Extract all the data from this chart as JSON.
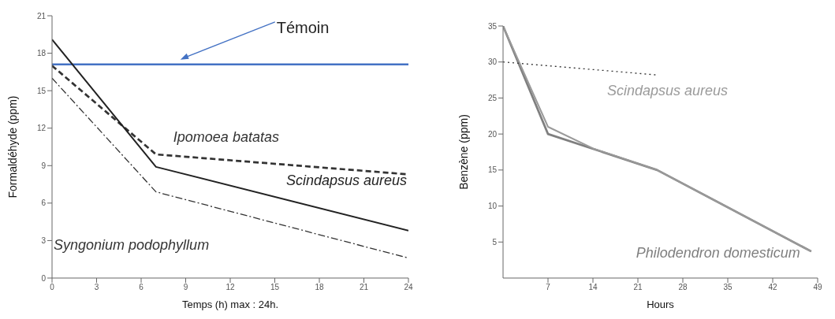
{
  "chart_data": [
    {
      "type": "line",
      "xlabel": "Temps (h) max : 24h.",
      "ylabel": "Formaldéhyde (ppm)",
      "xlim": [
        0,
        24
      ],
      "xticks": [
        0,
        3,
        6,
        9,
        12,
        15,
        18,
        21,
        24
      ],
      "ylim": [
        0,
        21
      ],
      "yticks": [
        0,
        3,
        6,
        9,
        12,
        15,
        18,
        21
      ],
      "grid": false,
      "legend": false,
      "marker": "none",
      "series": [
        {
          "name": "Ipomoea batatas",
          "color": "#333333",
          "line_style": "dashed",
          "x": [
            0,
            7,
            24
          ],
          "values": [
            17.0,
            9.9,
            8.3
          ]
        },
        {
          "name": "Scindapsus aureus",
          "color": "#222222",
          "line_style": "solid",
          "x": [
            0,
            7,
            24
          ],
          "values": [
            19.1,
            8.9,
            3.8
          ]
        },
        {
          "name": "Syngonium podophyllum",
          "color": "#333333",
          "line_style": "dashdot",
          "x": [
            0,
            7,
            24
          ],
          "values": [
            16.0,
            6.9,
            1.6
          ]
        }
      ],
      "ref_lines": [
        {
          "axis": "y",
          "value": 17.1,
          "label": "Témoin",
          "color": "#4472c4",
          "line_style": "solid"
        }
      ]
    },
    {
      "type": "line",
      "xlabel": "Hours",
      "ylabel": "Benzène (ppm)",
      "xlim": [
        0,
        49
      ],
      "xticks": [
        7,
        14,
        21,
        28,
        35,
        42,
        49
      ],
      "ylim": [
        0,
        35
      ],
      "yticks": [
        5,
        10,
        15,
        20,
        25,
        30,
        35
      ],
      "grid": false,
      "legend": false,
      "marker": "none",
      "series": [
        {
          "name": "Philodendron domesticum",
          "color": "#7f7f7f",
          "line_style": "solid",
          "x": [
            0,
            7,
            24,
            48
          ],
          "values": [
            35,
            20,
            15,
            3.7
          ]
        },
        {
          "name": "Scindapsus aureus",
          "color": "#9a9a9a",
          "line_style": "solid",
          "x": [
            0,
            7,
            14,
            24,
            48
          ],
          "values": [
            35,
            21,
            18,
            15,
            3.7
          ]
        },
        {
          "color": "#333333",
          "line_style": "dotted",
          "x": [
            0,
            24
          ],
          "values": [
            30,
            28.2
          ]
        }
      ]
    }
  ]
}
